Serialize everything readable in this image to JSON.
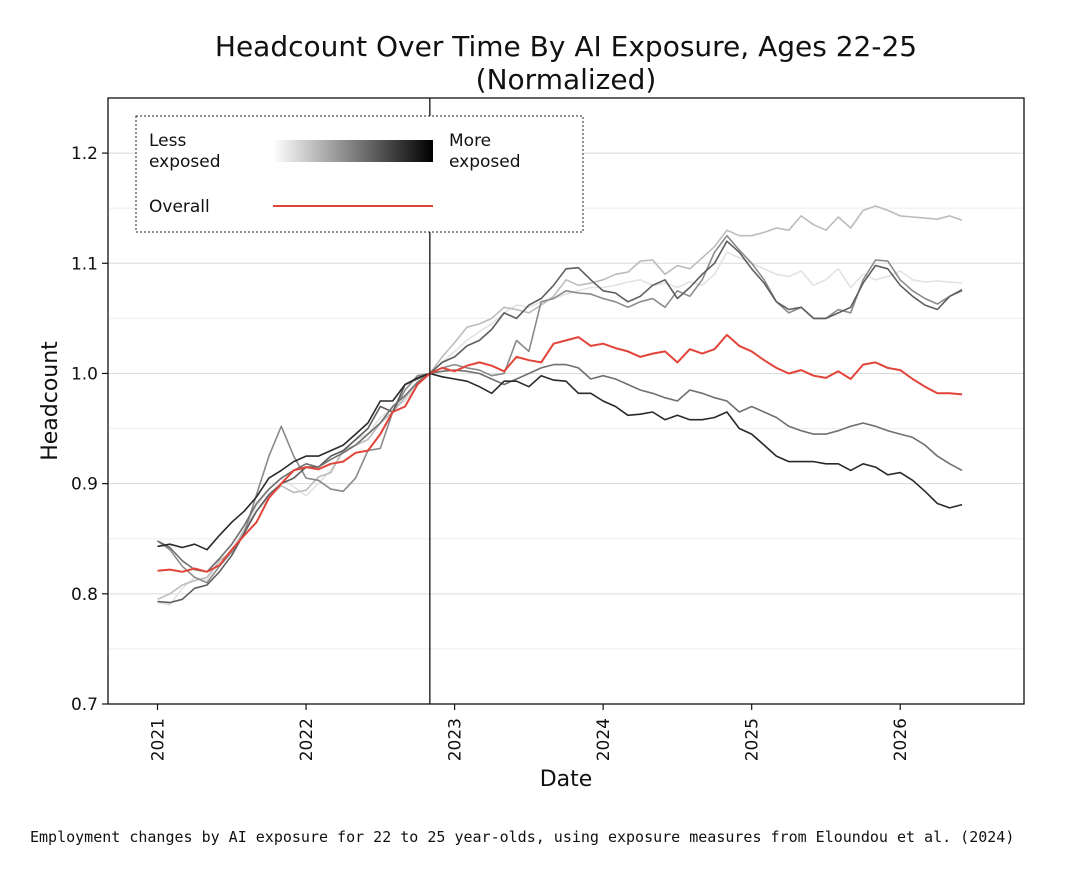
{
  "chart_data": {
    "type": "line",
    "title": "Headcount Over Time By AI Exposure, Ages 22-25",
    "subtitle": "(Normalized)",
    "xlabel": "Date",
    "ylabel": "Headcount",
    "xlim": [
      "2020-09",
      "2026-11"
    ],
    "ylim": [
      0.7,
      1.25
    ],
    "x_ticks": [
      "2021",
      "2022",
      "2023",
      "2024",
      "2025",
      "2026"
    ],
    "y_ticks": [
      "0.7",
      "0.8",
      "0.9",
      "1.0",
      "1.1",
      "1.2"
    ],
    "grid": "horizontal",
    "reference_line": "2022-11",
    "legend": {
      "placement": "top-left",
      "less_label": "Less\nexposed",
      "more_label": "More\nexposed",
      "overall_label": "Overall"
    },
    "x": [
      "2021-01",
      "2021-02",
      "2021-03",
      "2021-04",
      "2021-05",
      "2021-06",
      "2021-07",
      "2021-08",
      "2021-09",
      "2021-10",
      "2021-11",
      "2021-12",
      "2022-01",
      "2022-02",
      "2022-03",
      "2022-04",
      "2022-05",
      "2022-06",
      "2022-07",
      "2022-08",
      "2022-09",
      "2022-10",
      "2022-11",
      "2022-12",
      "2023-01",
      "2023-02",
      "2023-03",
      "2023-04",
      "2023-05",
      "2023-06",
      "2023-07",
      "2023-08",
      "2023-09",
      "2023-10",
      "2023-11",
      "2023-12",
      "2024-01",
      "2024-02",
      "2024-03",
      "2024-04",
      "2024-05",
      "2024-06",
      "2024-07",
      "2024-08",
      "2024-09",
      "2024-10",
      "2024-11",
      "2024-12",
      "2025-01",
      "2025-02",
      "2025-03",
      "2025-04",
      "2025-05",
      "2025-06",
      "2025-07",
      "2025-08",
      "2025-09",
      "2025-10",
      "2025-11",
      "2025-12",
      "2026-01",
      "2026-02",
      "2026-03",
      "2026-04",
      "2026-05",
      "2026-06"
    ],
    "series": [
      {
        "color": "#e2e2e2",
        "values": [
          0.792,
          0.79,
          0.805,
          0.815,
          0.812,
          0.83,
          0.84,
          0.858,
          0.88,
          0.895,
          0.905,
          0.897,
          0.889,
          0.9,
          0.912,
          0.93,
          0.94,
          0.945,
          0.96,
          0.968,
          0.975,
          0.99,
          1.0,
          1.01,
          1.02,
          1.03,
          1.038,
          1.045,
          1.055,
          1.062,
          1.06,
          1.065,
          1.068,
          1.072,
          1.075,
          1.078,
          1.078,
          1.08,
          1.083,
          1.085,
          1.08,
          1.082,
          1.078,
          1.083,
          1.08,
          1.09,
          1.11,
          1.105,
          1.1,
          1.095,
          1.09,
          1.088,
          1.093,
          1.08,
          1.085,
          1.095,
          1.078,
          1.09,
          1.085,
          1.088,
          1.093,
          1.085,
          1.083,
          1.084,
          1.083,
          1.082
        ]
      },
      {
        "color": "#bcbcbc",
        "values": [
          0.795,
          0.8,
          0.808,
          0.812,
          0.815,
          0.83,
          0.838,
          0.858,
          0.875,
          0.888,
          0.898,
          0.892,
          0.894,
          0.906,
          0.91,
          0.93,
          0.935,
          0.94,
          0.955,
          0.965,
          0.978,
          0.992,
          1.0,
          1.015,
          1.028,
          1.042,
          1.045,
          1.05,
          1.06,
          1.058,
          1.055,
          1.062,
          1.07,
          1.085,
          1.08,
          1.082,
          1.085,
          1.09,
          1.092,
          1.102,
          1.103,
          1.09,
          1.098,
          1.095,
          1.105,
          1.115,
          1.13,
          1.125,
          1.125,
          1.128,
          1.132,
          1.13,
          1.143,
          1.135,
          1.13,
          1.142,
          1.132,
          1.148,
          1.152,
          1.148,
          1.143,
          1.142,
          1.141,
          1.14,
          1.143,
          1.139
        ]
      },
      {
        "color": "#8a8a8a",
        "values": [
          0.848,
          0.84,
          0.825,
          0.815,
          0.81,
          0.825,
          0.838,
          0.855,
          0.89,
          0.925,
          0.952,
          0.925,
          0.905,
          0.903,
          0.895,
          0.893,
          0.905,
          0.93,
          0.932,
          0.965,
          0.985,
          0.998,
          1.0,
          1.005,
          1.008,
          1.005,
          1.003,
          0.998,
          1.0,
          1.03,
          1.02,
          1.065,
          1.068,
          1.075,
          1.073,
          1.072,
          1.068,
          1.065,
          1.06,
          1.065,
          1.068,
          1.06,
          1.075,
          1.07,
          1.085,
          1.11,
          1.125,
          1.112,
          1.1,
          1.085,
          1.065,
          1.055,
          1.06,
          1.05,
          1.05,
          1.058,
          1.055,
          1.085,
          1.103,
          1.102,
          1.085,
          1.075,
          1.068,
          1.063,
          1.07,
          1.075
        ]
      },
      {
        "color": "#5e5e5e",
        "values": [
          0.793,
          0.792,
          0.795,
          0.805,
          0.808,
          0.82,
          0.835,
          0.855,
          0.875,
          0.89,
          0.9,
          0.905,
          0.915,
          0.915,
          0.925,
          0.93,
          0.94,
          0.95,
          0.97,
          0.965,
          0.99,
          0.995,
          1.0,
          1.01,
          1.015,
          1.025,
          1.03,
          1.04,
          1.055,
          1.05,
          1.062,
          1.068,
          1.08,
          1.095,
          1.096,
          1.085,
          1.075,
          1.073,
          1.065,
          1.07,
          1.08,
          1.085,
          1.068,
          1.078,
          1.09,
          1.1,
          1.12,
          1.11,
          1.095,
          1.082,
          1.065,
          1.058,
          1.06,
          1.05,
          1.05,
          1.055,
          1.06,
          1.082,
          1.098,
          1.095,
          1.08,
          1.07,
          1.062,
          1.058,
          1.07,
          1.076
        ]
      },
      {
        "color": "#707070",
        "values": [
          0.848,
          0.842,
          0.83,
          0.822,
          0.82,
          0.832,
          0.845,
          0.862,
          0.882,
          0.895,
          0.905,
          0.912,
          0.918,
          0.915,
          0.922,
          0.928,
          0.935,
          0.945,
          0.955,
          0.97,
          0.98,
          0.992,
          1.0,
          1.002,
          1.003,
          1.002,
          1.0,
          0.995,
          0.99,
          0.995,
          1.0,
          1.005,
          1.008,
          1.008,
          1.005,
          0.995,
          0.998,
          0.995,
          0.99,
          0.985,
          0.982,
          0.978,
          0.975,
          0.985,
          0.982,
          0.978,
          0.975,
          0.965,
          0.97,
          0.965,
          0.96,
          0.952,
          0.948,
          0.945,
          0.945,
          0.948,
          0.952,
          0.955,
          0.952,
          0.948,
          0.945,
          0.942,
          0.935,
          0.925,
          0.918,
          0.912
        ]
      },
      {
        "color": "#2a2a2a",
        "values": [
          0.843,
          0.845,
          0.842,
          0.845,
          0.84,
          0.853,
          0.865,
          0.875,
          0.888,
          0.905,
          0.912,
          0.92,
          0.925,
          0.925,
          0.93,
          0.935,
          0.945,
          0.955,
          0.975,
          0.975,
          0.99,
          0.996,
          1.0,
          0.997,
          0.995,
          0.993,
          0.988,
          0.982,
          0.993,
          0.993,
          0.988,
          0.998,
          0.994,
          0.993,
          0.982,
          0.982,
          0.975,
          0.97,
          0.962,
          0.963,
          0.965,
          0.958,
          0.962,
          0.958,
          0.958,
          0.96,
          0.965,
          0.95,
          0.945,
          0.935,
          0.925,
          0.92,
          0.92,
          0.92,
          0.918,
          0.918,
          0.912,
          0.918,
          0.915,
          0.908,
          0.91,
          0.903,
          0.893,
          0.882,
          0.878,
          0.881
        ]
      },
      {
        "name": "Overall",
        "color": "#e3443a",
        "values": [
          0.821,
          0.822,
          0.82,
          0.823,
          0.82,
          0.826,
          0.84,
          0.853,
          0.865,
          0.887,
          0.9,
          0.912,
          0.915,
          0.913,
          0.918,
          0.92,
          0.928,
          0.93,
          0.945,
          0.965,
          0.97,
          0.99,
          1.0,
          1.005,
          1.002,
          1.007,
          1.01,
          1.007,
          1.002,
          1.015,
          1.012,
          1.01,
          1.027,
          1.03,
          1.033,
          1.025,
          1.027,
          1.023,
          1.02,
          1.015,
          1.018,
          1.02,
          1.01,
          1.022,
          1.018,
          1.022,
          1.035,
          1.025,
          1.02,
          1.012,
          1.005,
          1.0,
          1.003,
          0.998,
          0.996,
          1.002,
          0.995,
          1.008,
          1.01,
          1.005,
          1.003,
          0.995,
          0.988,
          0.982,
          0.982,
          0.981
        ]
      }
    ]
  },
  "caption": "Employment changes by AI exposure for 22 to 25 year-olds, using exposure measures from Eloundou et al. (2024)"
}
